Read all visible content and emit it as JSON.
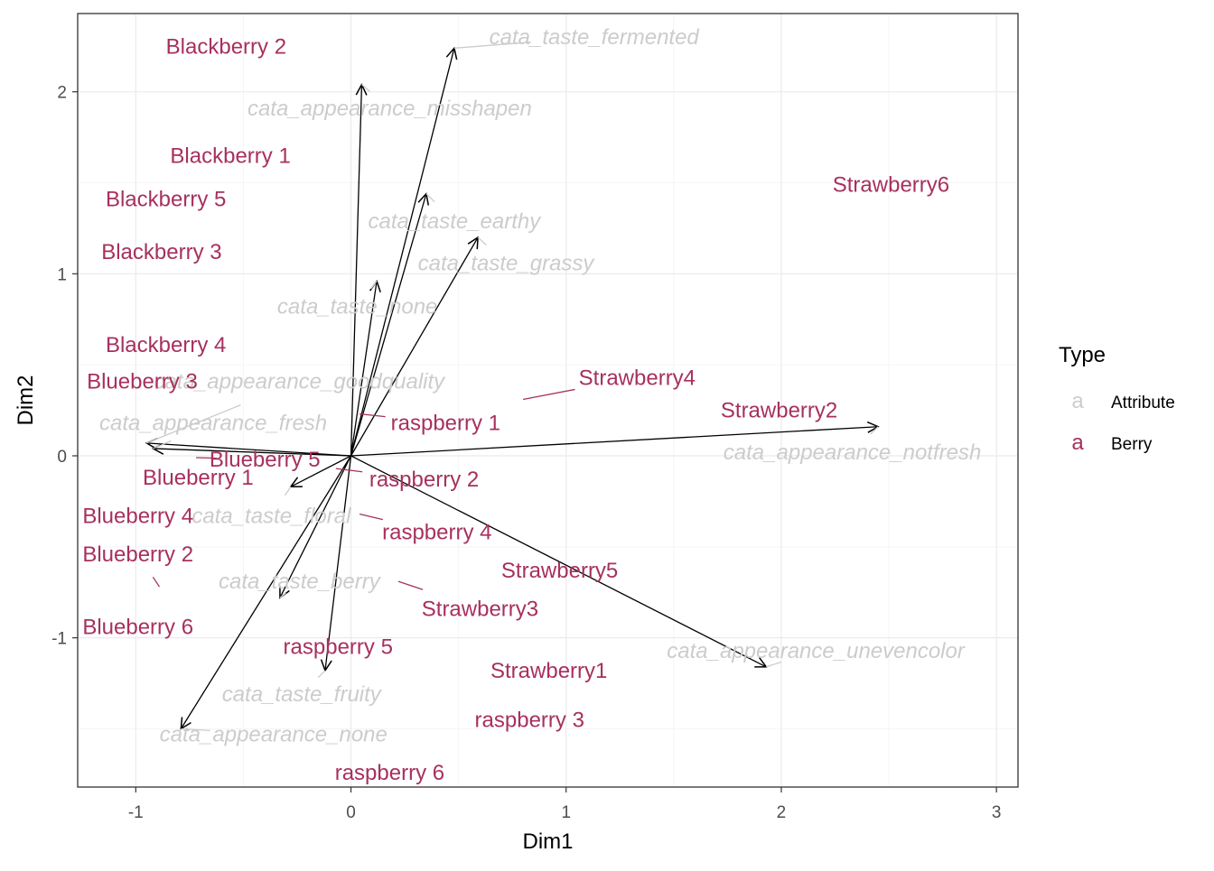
{
  "chart_data": {
    "type": "biplot",
    "xlabel": "Dim1",
    "ylabel": "Dim2",
    "xlim": [
      -1.27,
      3.1
    ],
    "ylim": [
      -1.82,
      2.43
    ],
    "x_ticks": [
      -1,
      0,
      1,
      2,
      3
    ],
    "y_ticks": [
      -1,
      0,
      1,
      2
    ],
    "x_tick_labels": [
      "-1",
      "0",
      "1",
      "2",
      "3"
    ],
    "y_tick_labels": [
      "-1",
      "0",
      "1",
      "2"
    ],
    "grid": true,
    "legend": {
      "title": "Type",
      "position": "right",
      "items": [
        {
          "key": "a",
          "label": "Attribute",
          "color": "#cccccc"
        },
        {
          "key": "a",
          "label": "Berry",
          "color": "#a7305e"
        }
      ]
    },
    "colors": {
      "attribute": "#cccccc",
      "berry": "#a7305e",
      "arrow": "#000000"
    },
    "attributes": [
      {
        "name": "cata_taste_fermented",
        "x": 0.48,
        "y": 2.24,
        "label_x": 1.13,
        "label_y": 2.3
      },
      {
        "name": "cata_appearance_misshapen",
        "x": 0.05,
        "y": 2.04,
        "label_x": 0.18,
        "label_y": 1.91
      },
      {
        "name": "cata_taste_earthy",
        "x": 0.35,
        "y": 1.44,
        "label_x": 0.48,
        "label_y": 1.29
      },
      {
        "name": "cata_taste_grassy",
        "x": 0.59,
        "y": 1.2,
        "label_x": 0.72,
        "label_y": 1.06
      },
      {
        "name": "cata_taste_none",
        "x": 0.12,
        "y": 0.96,
        "label_x": 0.03,
        "label_y": 0.82
      },
      {
        "name": "cata_appearance_goodquality",
        "x": -0.95,
        "y": 0.07,
        "label_x": -0.24,
        "label_y": 0.41
      },
      {
        "name": "cata_appearance_fresh",
        "x": -0.92,
        "y": 0.04,
        "label_x": -0.64,
        "label_y": 0.18
      },
      {
        "name": "cata_appearance_notfresh",
        "x": 2.45,
        "y": 0.16,
        "label_x": 2.33,
        "label_y": 0.02
      },
      {
        "name": "cata_taste_floral",
        "x": -0.28,
        "y": -0.17,
        "label_x": -0.37,
        "label_y": -0.33
      },
      {
        "name": "cata_taste_berry",
        "x": -0.33,
        "y": -0.78,
        "label_x": -0.24,
        "label_y": -0.69
      },
      {
        "name": "cata_appearance_unevencolor",
        "x": 1.93,
        "y": -1.16,
        "label_x": 2.16,
        "label_y": -1.07
      },
      {
        "name": "cata_taste_fruity",
        "x": -0.12,
        "y": -1.18,
        "label_x": -0.23,
        "label_y": -1.31
      },
      {
        "name": "cata_appearance_none",
        "x": -0.79,
        "y": -1.5,
        "label_x": -0.36,
        "label_y": -1.53
      }
    ],
    "berries": [
      {
        "name": "Blackberry 2",
        "x": -0.58,
        "y": 2.25,
        "label_x": -0.58,
        "label_y": 2.25
      },
      {
        "name": "Blackberry 1",
        "x": -0.56,
        "y": 1.65,
        "label_x": -0.56,
        "label_y": 1.65
      },
      {
        "name": "Blackberry 5",
        "x": -0.86,
        "y": 1.41,
        "label_x": -0.86,
        "label_y": 1.41
      },
      {
        "name": "Blackberry 3",
        "x": -0.88,
        "y": 1.12,
        "label_x": -0.88,
        "label_y": 1.12
      },
      {
        "name": "Blackberry 4",
        "x": -0.86,
        "y": 0.61,
        "label_x": -0.86,
        "label_y": 0.61
      },
      {
        "name": "Blueberry 3",
        "x": -0.97,
        "y": 0.41,
        "label_x": -0.97,
        "label_y": 0.41
      },
      {
        "name": "Blueberry 5",
        "x": -0.72,
        "y": -0.01,
        "label_x": -0.4,
        "label_y": -0.02
      },
      {
        "name": "Blueberry 1",
        "x": -0.71,
        "y": -0.12,
        "label_x": -0.71,
        "label_y": -0.12
      },
      {
        "name": "Blueberry 4",
        "x": -0.99,
        "y": -0.33,
        "label_x": -0.99,
        "label_y": -0.33
      },
      {
        "name": "Blueberry 2",
        "x": -0.89,
        "y": -0.72,
        "label_x": -0.99,
        "label_y": -0.54
      },
      {
        "name": "Blueberry 6",
        "x": -0.99,
        "y": -0.94,
        "label_x": -0.99,
        "label_y": -0.94
      },
      {
        "name": "Strawberry6",
        "x": 2.51,
        "y": 1.49,
        "label_x": 2.51,
        "label_y": 1.49
      },
      {
        "name": "Strawberry4",
        "x": 0.8,
        "y": 0.31,
        "label_x": 1.33,
        "label_y": 0.43
      },
      {
        "name": "Strawberry2",
        "x": 1.99,
        "y": 0.25,
        "label_x": 1.99,
        "label_y": 0.25
      },
      {
        "name": "raspberry 1",
        "x": 0.04,
        "y": 0.23,
        "label_x": 0.44,
        "label_y": 0.18
      },
      {
        "name": "raspberry 2",
        "x": -0.07,
        "y": -0.07,
        "label_x": 0.34,
        "label_y": -0.13
      },
      {
        "name": "raspberry 4",
        "x": 0.04,
        "y": -0.32,
        "label_x": 0.4,
        "label_y": -0.42
      },
      {
        "name": "Strawberry5",
        "x": 0.97,
        "y": -0.63,
        "label_x": 0.97,
        "label_y": -0.63
      },
      {
        "name": "Strawberry3",
        "x": 0.22,
        "y": -0.69,
        "label_x": 0.6,
        "label_y": -0.84
      },
      {
        "name": "raspberry 5",
        "x": -0.06,
        "y": -1.05,
        "label_x": -0.06,
        "label_y": -1.05
      },
      {
        "name": "Strawberry1",
        "x": 0.92,
        "y": -1.18,
        "label_x": 0.92,
        "label_y": -1.18
      },
      {
        "name": "raspberry 3",
        "x": 0.83,
        "y": -1.45,
        "label_x": 0.83,
        "label_y": -1.45
      },
      {
        "name": "raspberry 6",
        "x": 0.18,
        "y": -1.74,
        "label_x": 0.18,
        "label_y": -1.74
      }
    ]
  }
}
